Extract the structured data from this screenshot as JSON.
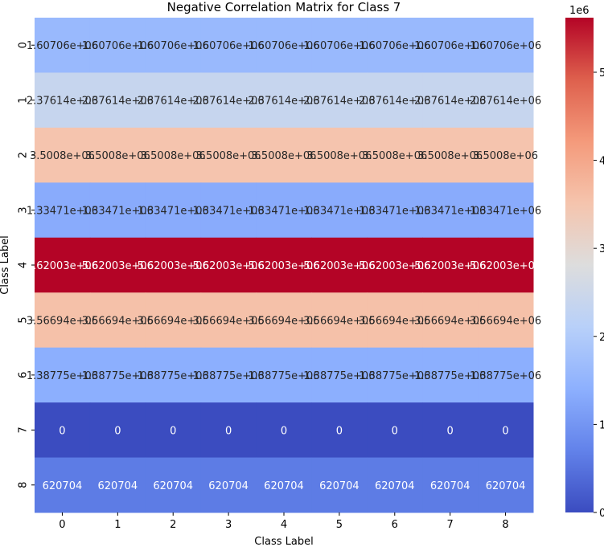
{
  "chart_data": {
    "type": "heatmap",
    "title": "Negative Correlation Matrix for Class 7",
    "xlabel": "Class Label",
    "ylabel": "Class Label",
    "x_categories": [
      "0",
      "1",
      "2",
      "3",
      "4",
      "5",
      "6",
      "7",
      "8"
    ],
    "y_categories": [
      "0",
      "1",
      "2",
      "3",
      "4",
      "5",
      "6",
      "7",
      "8"
    ],
    "row_values": [
      1607060,
      2376140,
      3500800,
      1334710,
      5620030,
      3566940,
      1387750,
      0,
      620704
    ],
    "cell_labels": [
      "1.60706e+06",
      "2.37614e+06",
      "3.5008e+06",
      "1.33471e+06",
      "5.62003e+06",
      "3.56694e+06",
      "1.38775e+06",
      "0",
      "620704"
    ],
    "colorbar": {
      "colormap": "coolwarm",
      "vmin": 0,
      "vmax": 5620030,
      "ticks": [
        0,
        1,
        2,
        3,
        4,
        5
      ],
      "tick_labels": [
        "0",
        "1",
        "2",
        "3",
        "4",
        "5"
      ],
      "offset_label": "1e6"
    }
  }
}
